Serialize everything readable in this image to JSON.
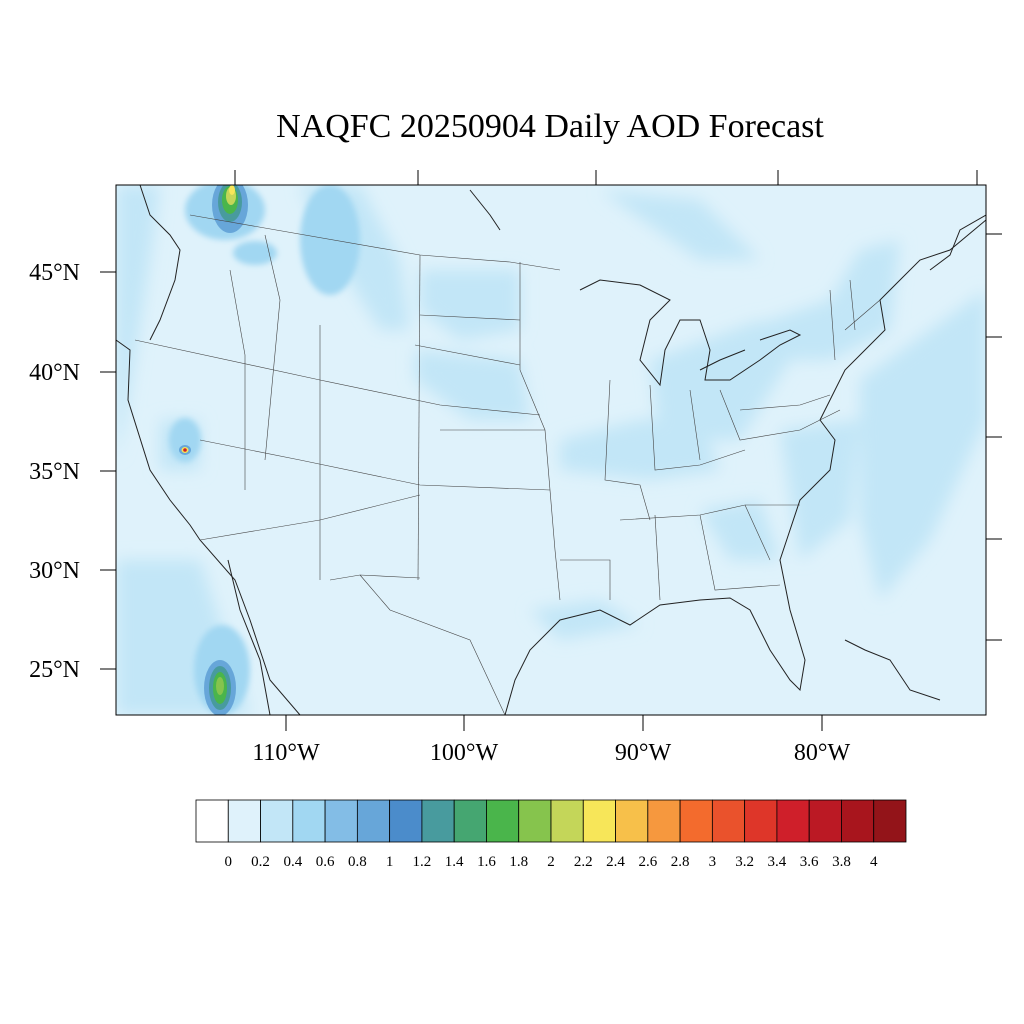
{
  "title": "NAQFC 20250904 Daily AOD Forecast",
  "map": {
    "ocean_color": "#e3f4fb",
    "land_color": "#dff2fb",
    "lat_labels": [
      "45°N",
      "40°N",
      "35°N",
      "30°N",
      "25°N"
    ],
    "lon_labels": [
      "110°W",
      "100°W",
      "90°W",
      "80°W"
    ]
  },
  "colorbar": {
    "labels": [
      "0",
      "0.2",
      "0.4",
      "0.6",
      "0.8",
      "1",
      "1.2",
      "1.4",
      "1.6",
      "1.8",
      "2",
      "2.2",
      "2.4",
      "2.6",
      "2.8",
      "3",
      "3.2",
      "3.4",
      "3.6",
      "3.8",
      "4"
    ],
    "colors": [
      "#ffffff",
      "#dff2fb",
      "#c2e6f7",
      "#a1d7f2",
      "#83bde6",
      "#67a6d9",
      "#4b8ccb",
      "#489b9e",
      "#45a671",
      "#4ab54b",
      "#86c44d",
      "#c4d659",
      "#f7e659",
      "#f7c04a",
      "#f6983e",
      "#f36b2d",
      "#ea522c",
      "#de3629",
      "#cf1f2a",
      "#bb1924",
      "#a8151d",
      "#931419"
    ]
  }
}
